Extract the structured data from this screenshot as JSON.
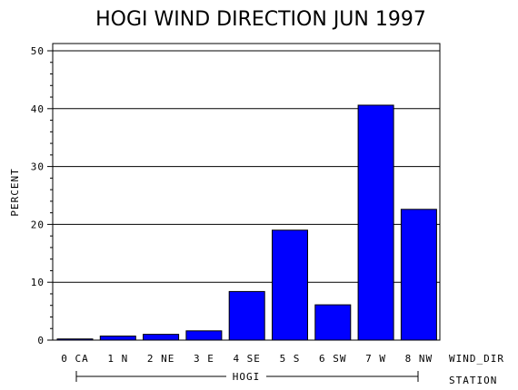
{
  "chart_data": {
    "type": "bar",
    "title": "HOGI WIND DIRECTION JUN 1997",
    "ylabel": "PERCENT",
    "xlabel": "WIND_DIR",
    "group_axis_label": "STATION",
    "group_label": "HOGI",
    "categories": [
      "0 CA",
      "1 N",
      "2 NE",
      "3 E",
      "4 SE",
      "5 S",
      "6 SW",
      "7 W",
      "8 NW"
    ],
    "values": [
      0.2,
      0.7,
      1.0,
      1.6,
      8.4,
      19.0,
      6.1,
      40.6,
      22.6
    ],
    "ylim": [
      0,
      50
    ],
    "yticks": [
      0,
      10,
      20,
      30,
      40,
      50
    ],
    "grid": true,
    "bar_color": "#0000ff"
  }
}
